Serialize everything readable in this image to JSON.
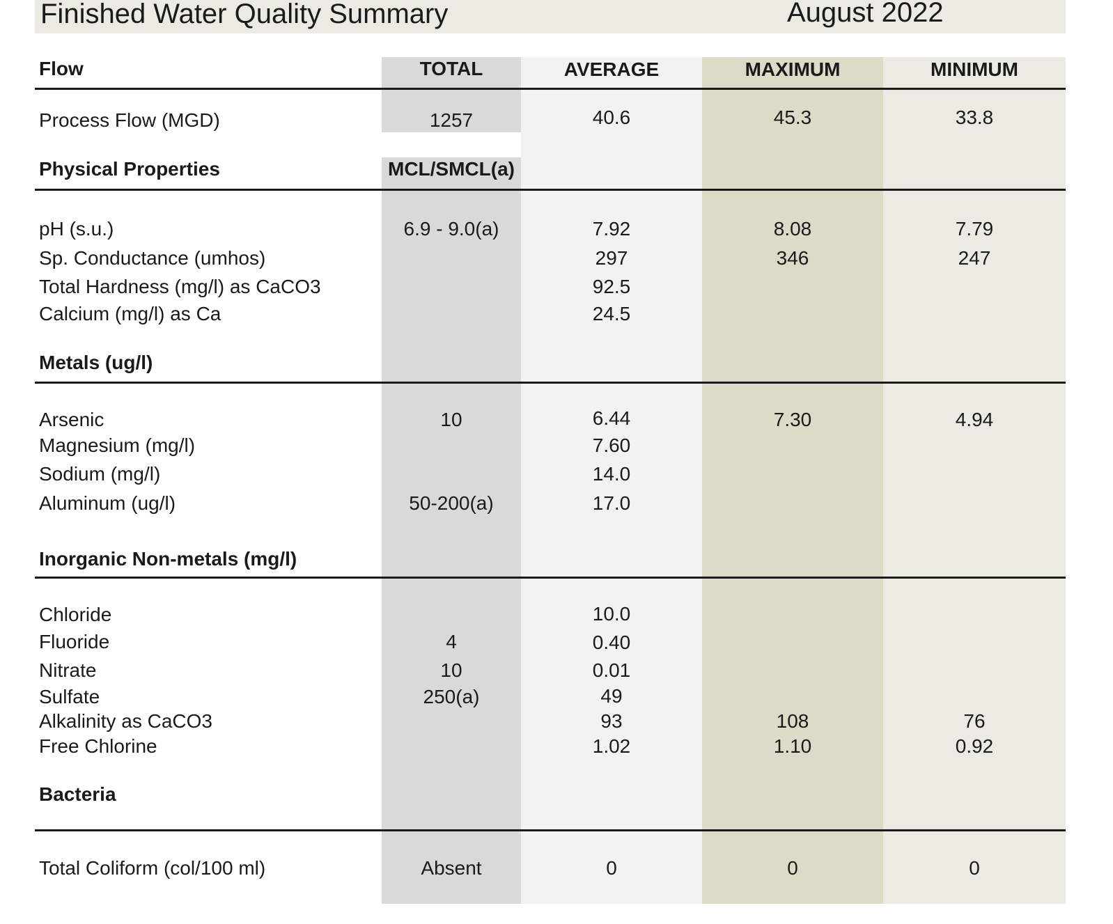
{
  "header": {
    "title": "Finished Water Quality Summary",
    "period": "August 2022"
  },
  "flow": {
    "section_label": "Flow",
    "columns": {
      "total": "TOTAL",
      "average": "AVERAGE",
      "maximum": "MAXIMUM",
      "minimum": "MINIMUM"
    },
    "process_flow": {
      "label": "Process Flow (MGD)",
      "total": "1257",
      "average": "40.6",
      "maximum": "45.3",
      "minimum": "33.8"
    }
  },
  "physical": {
    "section_label": "Physical Properties",
    "mcl_header": "MCL/SMCL(a)",
    "rows": [
      {
        "label": "pH (s.u.)",
        "mcl": "6.9 - 9.0(a)",
        "average": "7.92",
        "maximum": "8.08",
        "minimum": "7.79"
      },
      {
        "label": "Sp. Conductance (umhos)",
        "mcl": "",
        "average": "297",
        "maximum": "346",
        "minimum": "247"
      },
      {
        "label": "Total Hardness (mg/l) as CaCO3",
        "mcl": "",
        "average": "92.5",
        "maximum": "",
        "minimum": ""
      },
      {
        "label": "Calcium (mg/l) as Ca",
        "mcl": "",
        "average": "24.5",
        "maximum": "",
        "minimum": ""
      }
    ]
  },
  "metals": {
    "section_label": "Metals (ug/l)",
    "rows": [
      {
        "label": "Arsenic",
        "mcl": "10",
        "average": "6.44",
        "maximum": "7.30",
        "minimum": "4.94"
      },
      {
        "label": "Magnesium (mg/l)",
        "mcl": "",
        "average": "7.60",
        "maximum": "",
        "minimum": ""
      },
      {
        "label": "Sodium (mg/l)",
        "mcl": "",
        "average": "14.0",
        "maximum": "",
        "minimum": ""
      },
      {
        "label": "Aluminum (ug/l)",
        "mcl": "50-200(a)",
        "average": "17.0",
        "maximum": "",
        "minimum": ""
      }
    ]
  },
  "inorganic": {
    "section_label": "Inorganic Non-metals (mg/l)",
    "rows": [
      {
        "label": "Chloride",
        "mcl": "",
        "average": "10.0",
        "maximum": "",
        "minimum": ""
      },
      {
        "label": "Fluoride",
        "mcl": "4",
        "average": "0.40",
        "maximum": "",
        "minimum": ""
      },
      {
        "label": "Nitrate",
        "mcl": "10",
        "average": "0.01",
        "maximum": "",
        "minimum": ""
      },
      {
        "label": "Sulfate",
        "mcl": "250(a)",
        "average": "49",
        "maximum": "",
        "minimum": ""
      },
      {
        "label": "Alkalinity as CaCO3",
        "mcl": "",
        "average": "93",
        "maximum": "108",
        "minimum": "76"
      },
      {
        "label": "Free Chlorine",
        "mcl": "",
        "average": "1.02",
        "maximum": "1.10",
        "minimum": "0.92"
      }
    ]
  },
  "bacteria": {
    "section_label": "Bacteria",
    "rows": [
      {
        "label": "Total Coliform (col/100 ml)",
        "mcl": "Absent",
        "average": "0",
        "maximum": "0",
        "minimum": "0"
      }
    ]
  }
}
